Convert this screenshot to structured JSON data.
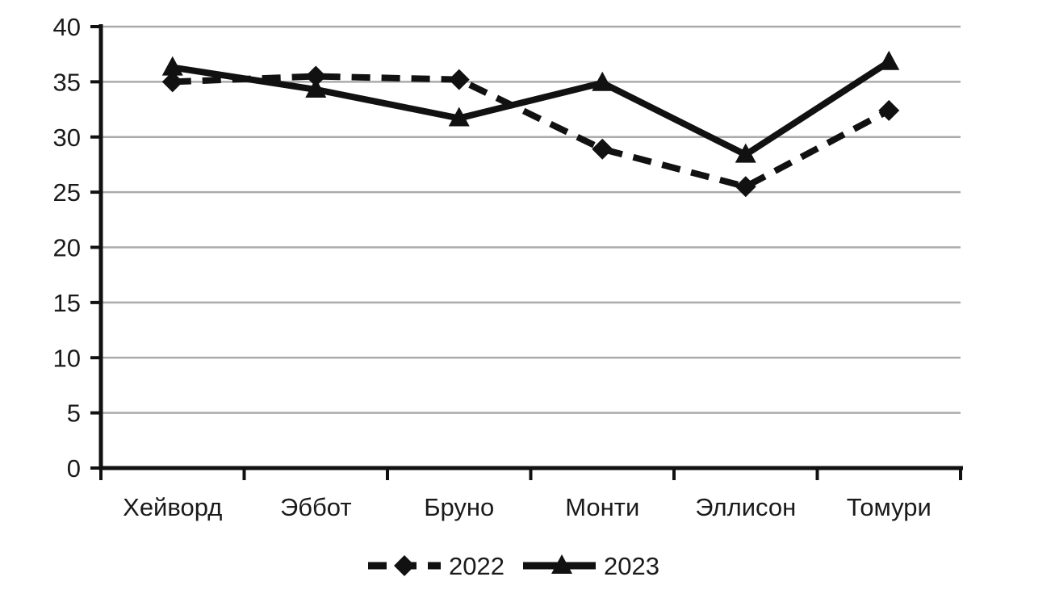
{
  "page": {
    "background": "#ffffff"
  },
  "chart_data": {
    "type": "line",
    "title": "",
    "xlabel": "",
    "ylabel": "",
    "categories": [
      "Хейворд",
      "Эббот",
      "Бруно",
      "Монти",
      "Эллисон",
      "Томури"
    ],
    "series": [
      {
        "name": "2022",
        "style": "dashed",
        "marker": "diamond",
        "values": [
          35.0,
          35.5,
          35.2,
          28.9,
          25.5,
          32.4
        ]
      },
      {
        "name": "2023",
        "style": "solid",
        "marker": "triangle",
        "values": [
          36.3,
          34.3,
          31.7,
          34.9,
          28.4,
          36.8
        ]
      }
    ],
    "ylim": [
      0,
      40
    ],
    "ytick_step": 5,
    "ytick_labels": [
      "0",
      "5",
      "10",
      "15",
      "20",
      "25",
      "30",
      "35",
      "40"
    ],
    "grid": true,
    "legend_position": "bottom",
    "colors": {
      "line": "#111111",
      "grid": "#ababab",
      "axis": "#111111",
      "text": "#1a1a1a"
    }
  }
}
